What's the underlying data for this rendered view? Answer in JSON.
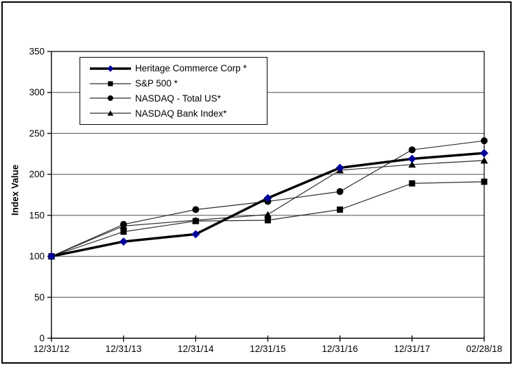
{
  "chart_data": {
    "type": "line",
    "title": "",
    "xlabel": "",
    "ylabel": "Index Value",
    "ylim": [
      0,
      350
    ],
    "yticks": [
      0,
      50,
      100,
      150,
      200,
      250,
      300,
      350
    ],
    "grid": "horizontal",
    "legend_position": "inside-top-left",
    "categories": [
      "12/31/12",
      "12/31/13",
      "12/31/14",
      "12/31/15",
      "12/31/16",
      "12/31/17",
      "02/28/18"
    ],
    "series": [
      {
        "name": "Heritage Commerce Corp *",
        "marker": "diamond",
        "marker_color": "#000099",
        "line_color": "#000000",
        "line_width": 3.5,
        "values": [
          100,
          118,
          127,
          171,
          208,
          219,
          226
        ]
      },
      {
        "name": "S&P 500 *",
        "marker": "square",
        "marker_color": "#000000",
        "line_color": "#2b2b2b",
        "line_width": 1.2,
        "values": [
          100,
          130,
          143,
          144,
          157,
          189,
          191
        ]
      },
      {
        "name": "NASDAQ - Total US*",
        "marker": "circle",
        "marker_color": "#000000",
        "line_color": "#2b2b2b",
        "line_width": 1.2,
        "values": [
          100,
          139,
          157,
          167,
          179,
          230,
          241
        ]
      },
      {
        "name": "NASDAQ Bank Index*",
        "marker": "triangle",
        "marker_color": "#000000",
        "line_color": "#2b2b2b",
        "line_width": 1.2,
        "values": [
          100,
          137,
          144,
          151,
          205,
          212,
          217
        ]
      }
    ]
  }
}
